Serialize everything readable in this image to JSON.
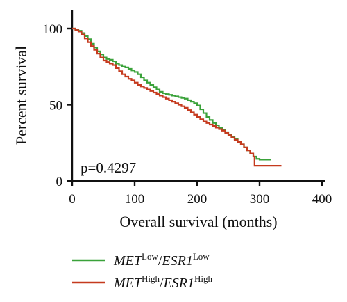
{
  "chart_data": {
    "type": "line",
    "subtype": "kaplan-meier step curve",
    "title": "",
    "xlabel": "Overall survival (months)",
    "ylabel": "Percent survival",
    "xlim": [
      0,
      400
    ],
    "ylim": [
      0,
      100
    ],
    "x_ticks": [
      "0",
      "100",
      "200",
      "300",
      "400"
    ],
    "y_ticks": [
      "0",
      "50",
      "100"
    ],
    "grid": false,
    "legend_placement": "bottom-left",
    "annotation": "p=0.4297",
    "series": [
      {
        "label_main": "MET",
        "label_sup": "Low",
        "label_main2": "ESR1",
        "label_sup2": "Low",
        "color": "#3aa23a",
        "points": [
          [
            0,
            100
          ],
          [
            5,
            99.5
          ],
          [
            10,
            98.5
          ],
          [
            15,
            97
          ],
          [
            20,
            95
          ],
          [
            25,
            93
          ],
          [
            30,
            90
          ],
          [
            35,
            87.5
          ],
          [
            40,
            85
          ],
          [
            45,
            83
          ],
          [
            50,
            81
          ],
          [
            55,
            80
          ],
          [
            60,
            79.5
          ],
          [
            65,
            78.5
          ],
          [
            70,
            77
          ],
          [
            75,
            76
          ],
          [
            80,
            75
          ],
          [
            85,
            74.5
          ],
          [
            90,
            73.5
          ],
          [
            95,
            72.5
          ],
          [
            100,
            71.5
          ],
          [
            105,
            70
          ],
          [
            110,
            68
          ],
          [
            115,
            66
          ],
          [
            120,
            64.5
          ],
          [
            125,
            63
          ],
          [
            130,
            61.5
          ],
          [
            135,
            60
          ],
          [
            140,
            58.5
          ],
          [
            145,
            57.5
          ],
          [
            150,
            57
          ],
          [
            155,
            56.5
          ],
          [
            160,
            56
          ],
          [
            165,
            55.5
          ],
          [
            170,
            55
          ],
          [
            175,
            54.5
          ],
          [
            180,
            54
          ],
          [
            185,
            53
          ],
          [
            190,
            52
          ],
          [
            195,
            51
          ],
          [
            200,
            49.5
          ],
          [
            205,
            47
          ],
          [
            210,
            44.5
          ],
          [
            215,
            42
          ],
          [
            220,
            40
          ],
          [
            225,
            38
          ],
          [
            230,
            36.5
          ],
          [
            235,
            35
          ],
          [
            240,
            33.5
          ],
          [
            245,
            32
          ],
          [
            250,
            30.5
          ],
          [
            255,
            29
          ],
          [
            260,
            27.5
          ],
          [
            265,
            26
          ],
          [
            270,
            24
          ],
          [
            275,
            22
          ],
          [
            280,
            20
          ],
          [
            285,
            18
          ],
          [
            290,
            16
          ],
          [
            295,
            14.5
          ],
          [
            300,
            14
          ],
          [
            310,
            14
          ],
          [
            318,
            14
          ]
        ]
      },
      {
        "label_main": "MET",
        "label_sup": "High",
        "label_main2": "ESR1",
        "label_sup2": "High",
        "color": "#c53a1e",
        "points": [
          [
            0,
            100
          ],
          [
            5,
            99
          ],
          [
            10,
            98
          ],
          [
            15,
            96
          ],
          [
            20,
            93.5
          ],
          [
            25,
            91
          ],
          [
            30,
            88.5
          ],
          [
            35,
            86
          ],
          [
            40,
            83.5
          ],
          [
            45,
            81
          ],
          [
            50,
            79
          ],
          [
            55,
            78
          ],
          [
            60,
            77
          ],
          [
            65,
            76
          ],
          [
            70,
            74
          ],
          [
            75,
            72
          ],
          [
            80,
            70
          ],
          [
            85,
            68.5
          ],
          [
            90,
            67
          ],
          [
            95,
            66
          ],
          [
            100,
            64.5
          ],
          [
            105,
            63
          ],
          [
            110,
            62
          ],
          [
            115,
            61
          ],
          [
            120,
            60
          ],
          [
            125,
            59
          ],
          [
            130,
            58
          ],
          [
            135,
            57
          ],
          [
            140,
            56
          ],
          [
            145,
            55
          ],
          [
            150,
            54
          ],
          [
            155,
            53
          ],
          [
            160,
            52
          ],
          [
            165,
            51
          ],
          [
            170,
            50
          ],
          [
            175,
            49
          ],
          [
            180,
            48
          ],
          [
            185,
            46.5
          ],
          [
            190,
            45
          ],
          [
            195,
            43.5
          ],
          [
            200,
            42
          ],
          [
            205,
            40.5
          ],
          [
            210,
            39
          ],
          [
            215,
            38
          ],
          [
            220,
            37
          ],
          [
            225,
            36
          ],
          [
            230,
            35
          ],
          [
            235,
            34
          ],
          [
            240,
            33
          ],
          [
            245,
            31.5
          ],
          [
            250,
            30
          ],
          [
            255,
            28.5
          ],
          [
            260,
            27
          ],
          [
            265,
            25.5
          ],
          [
            270,
            24
          ],
          [
            275,
            22
          ],
          [
            280,
            20
          ],
          [
            285,
            18
          ],
          [
            290,
            16
          ],
          [
            292,
            10
          ],
          [
            300,
            10
          ],
          [
            315,
            10
          ],
          [
            335,
            10
          ]
        ]
      }
    ]
  }
}
